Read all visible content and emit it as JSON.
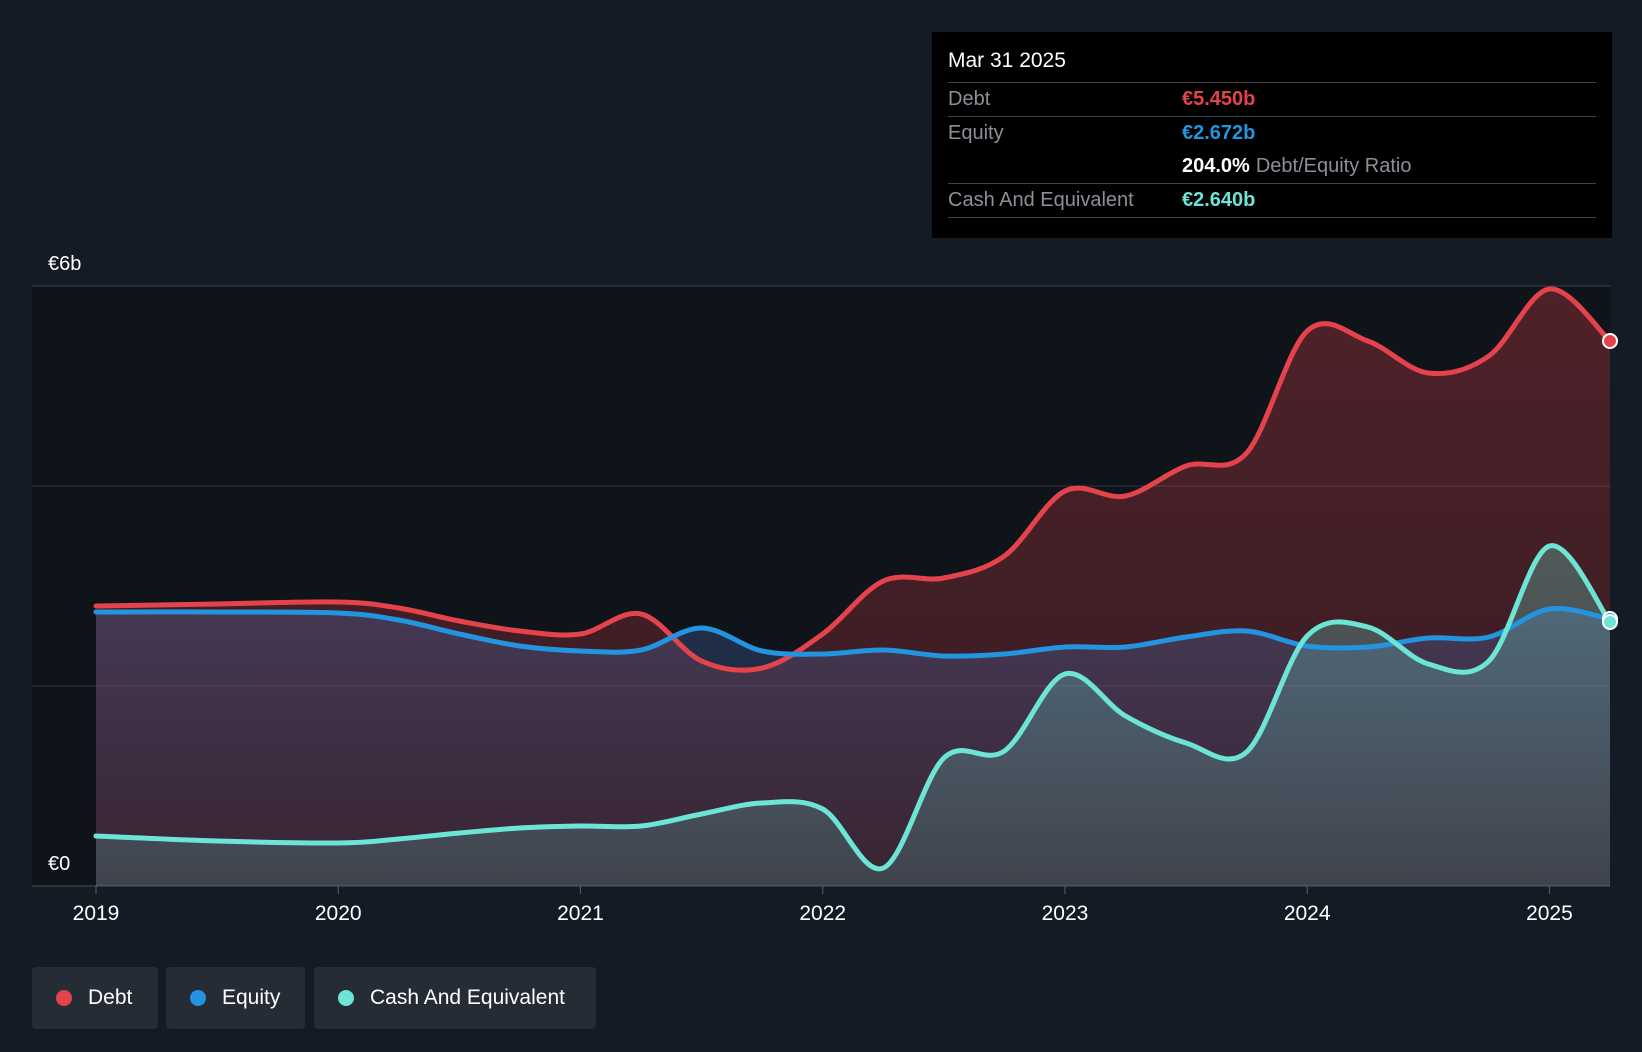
{
  "tooltip": {
    "date": "Mar 31 2025",
    "debt_label": "Debt",
    "debt_value": "€5.450b",
    "equity_label": "Equity",
    "equity_value": "€2.672b",
    "ratio_value": "204.0%",
    "ratio_label": "Debt/Equity Ratio",
    "cash_label": "Cash And Equivalent",
    "cash_value": "€2.640b"
  },
  "legend": [
    {
      "label": "Debt",
      "color": "#e5434b"
    },
    {
      "label": "Equity",
      "color": "#2394df"
    },
    {
      "label": "Cash And Equivalent",
      "color": "#6ce5d6"
    }
  ],
  "chart_data": {
    "type": "area",
    "title": "",
    "xlabel": "",
    "ylabel": "",
    "ylim": [
      0,
      6
    ],
    "xlim": [
      2019.0,
      2025.25
    ],
    "y_ticks": [
      {
        "value": 6,
        "label": "€6b"
      },
      {
        "value": 0,
        "label": "€0"
      }
    ],
    "gridlines": [
      0,
      2,
      4,
      6
    ],
    "x_ticks": [
      {
        "value": 2019,
        "label": "2019"
      },
      {
        "value": 2020,
        "label": "2020"
      },
      {
        "value": 2021,
        "label": "2021"
      },
      {
        "value": 2022,
        "label": "2022"
      },
      {
        "value": 2023,
        "label": "2023"
      },
      {
        "value": 2024,
        "label": "2024"
      },
      {
        "value": 2025,
        "label": "2025"
      }
    ],
    "series": [
      {
        "name": "Debt",
        "color": "#e5434b",
        "x": [
          2019.0,
          2019.5,
          2020.0,
          2020.25,
          2020.5,
          2020.75,
          2021.0,
          2021.25,
          2021.5,
          2021.75,
          2022.0,
          2022.25,
          2022.5,
          2022.75,
          2023.0,
          2023.25,
          2023.5,
          2023.75,
          2024.0,
          2024.25,
          2024.5,
          2024.75,
          2025.0,
          2025.25
        ],
        "values": [
          2.8,
          2.82,
          2.84,
          2.78,
          2.65,
          2.55,
          2.52,
          2.72,
          2.25,
          2.18,
          2.52,
          3.05,
          3.08,
          3.3,
          3.95,
          3.9,
          4.2,
          4.33,
          5.55,
          5.45,
          5.13,
          5.3,
          5.97,
          5.45
        ]
      },
      {
        "name": "Equity",
        "color": "#2394df",
        "x": [
          2019.0,
          2019.5,
          2020.0,
          2020.25,
          2020.5,
          2020.75,
          2021.0,
          2021.25,
          2021.5,
          2021.75,
          2022.0,
          2022.25,
          2022.5,
          2022.75,
          2023.0,
          2023.25,
          2023.5,
          2023.75,
          2024.0,
          2024.25,
          2024.5,
          2024.75,
          2025.0,
          2025.25
        ],
        "values": [
          2.74,
          2.74,
          2.73,
          2.66,
          2.52,
          2.4,
          2.35,
          2.36,
          2.58,
          2.35,
          2.32,
          2.36,
          2.3,
          2.32,
          2.39,
          2.39,
          2.49,
          2.55,
          2.4,
          2.39,
          2.48,
          2.49,
          2.77,
          2.67
        ]
      },
      {
        "name": "Cash And Equivalent",
        "color": "#6ce5d6",
        "x": [
          2019.0,
          2019.5,
          2020.0,
          2020.25,
          2020.5,
          2020.75,
          2021.0,
          2021.25,
          2021.5,
          2021.75,
          2022.0,
          2022.25,
          2022.5,
          2022.75,
          2023.0,
          2023.25,
          2023.5,
          2023.75,
          2024.0,
          2024.25,
          2024.5,
          2024.75,
          2025.0,
          2025.25
        ],
        "values": [
          0.5,
          0.45,
          0.43,
          0.47,
          0.53,
          0.58,
          0.6,
          0.6,
          0.72,
          0.83,
          0.77,
          0.18,
          1.28,
          1.35,
          2.12,
          1.7,
          1.43,
          1.34,
          2.5,
          2.59,
          2.22,
          2.25,
          3.4,
          2.64
        ]
      }
    ]
  }
}
